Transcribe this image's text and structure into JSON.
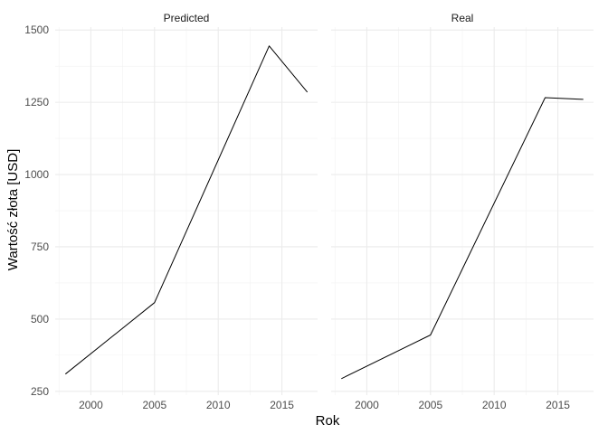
{
  "chart_data": {
    "type": "line",
    "xlabel": "Rok",
    "ylabel": "Wartość złota [USD]",
    "xlim": [
      1997.2,
      2017.8
    ],
    "ylim": [
      237,
      1510
    ],
    "x_ticks": [
      2000,
      2005,
      2010,
      2015
    ],
    "x_tick_labels": [
      "2000",
      "2005",
      "2010",
      "2015"
    ],
    "y_ticks": [
      250,
      500,
      750,
      1000,
      1250,
      1500
    ],
    "y_tick_labels": [
      "250",
      "500",
      "750",
      "1000",
      "1250",
      "1500"
    ],
    "grid": true,
    "line_color": "#000000",
    "panels": [
      {
        "name": "Predicted",
        "x": [
          1998,
          2005,
          2014,
          2017
        ],
        "y": [
          310,
          557,
          1445,
          1285
        ]
      },
      {
        "name": "Real",
        "x": [
          1998,
          2005,
          2014,
          2017
        ],
        "y": [
          294,
          445,
          1266,
          1260
        ]
      }
    ]
  }
}
